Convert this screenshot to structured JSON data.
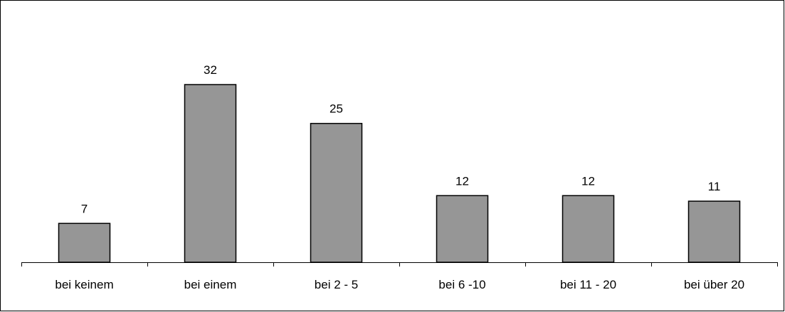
{
  "chart_data": {
    "type": "bar",
    "categories": [
      "bei keinem",
      "bei einem",
      "bei 2 - 5",
      "bei 6 -10",
      "bei 11 - 20",
      "bei über 20"
    ],
    "values": [
      7,
      32,
      25,
      12,
      12,
      11
    ],
    "title": "",
    "xlabel": "",
    "ylabel": "",
    "ylim": [
      0,
      35
    ],
    "grid": false,
    "legend": "none",
    "data_labels": true,
    "bar_color": "#969696",
    "bar_edge_color": "#000000"
  }
}
